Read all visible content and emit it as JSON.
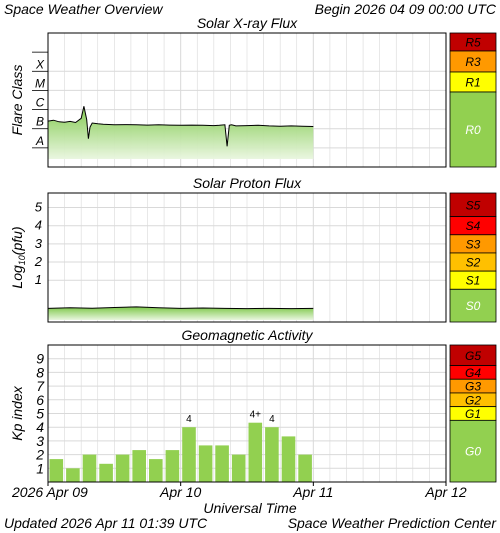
{
  "header": {
    "title": "Space Weather Overview",
    "begin": "Begin 2026 04 09 00:00 UTC"
  },
  "footer": {
    "updated": "Updated 2026 Apr 11 01:39 UTC",
    "center": "Space Weather Prediction Center"
  },
  "colors": {
    "grid": "#d9d9d9",
    "trace": "#000000",
    "fill_top": "#7ec84a",
    "fill_bottom": "#e9f6df",
    "bar": "#92d050",
    "scale": {
      "G5": "#c00000",
      "G4": "#ff0000",
      "G3": "#ff9900",
      "G2": "#ffc000",
      "G1": "#ffff00",
      "G0": "#92d050",
      "S5": "#c00000",
      "S4": "#ff0000",
      "S3": "#ff9900",
      "S2": "#ffc000",
      "S1": "#ffff00",
      "S0": "#92d050",
      "R5": "#c00000",
      "R3": "#ff9900",
      "R1": "#ffff00",
      "R0": "#92d050"
    }
  },
  "chart_data": [
    {
      "type": "line",
      "title": "Solar X-ray Flux",
      "ylabel": "Flare Class",
      "y_scale": "log",
      "ylim": [
        1e-09,
        0.01
      ],
      "y_ticks": [
        {
          "label": "A",
          "value": 1e-08
        },
        {
          "label": "B",
          "value": 1e-07
        },
        {
          "label": "C",
          "value": 1e-06
        },
        {
          "label": "M",
          "value": 1e-05
        },
        {
          "label": "X",
          "value": 0.0001
        }
      ],
      "x_range_hours": [
        0,
        72
      ],
      "series": [
        {
          "x_hours": [
            0,
            1,
            2,
            3,
            4,
            5,
            6,
            6.5,
            7,
            7.3,
            7.6,
            8,
            9,
            10,
            12,
            14,
            16,
            18,
            20,
            22,
            24,
            26,
            28,
            30,
            31,
            32,
            32.4,
            32.8,
            33.2,
            34,
            36,
            38,
            40,
            42,
            44,
            46,
            48
          ],
          "values": [
            2.5e-07,
            2.8e-07,
            2.3e-07,
            2.2e-07,
            2.4e-07,
            2.1e-07,
            3.5e-07,
            1.5e-06,
            3e-07,
            3e-08,
            1.2e-07,
            2e-07,
            1.8e-07,
            1.7e-07,
            1.6e-07,
            1.65e-07,
            1.6e-07,
            1.55e-07,
            1.6e-07,
            1.55e-07,
            1.5e-07,
            1.55e-07,
            1.5e-07,
            1.45e-07,
            1.5e-07,
            1.6e-07,
            1.2e-08,
            1.5e-07,
            1.6e-07,
            1.4e-07,
            1.45e-07,
            1.5e-07,
            1.4e-07,
            1.35e-07,
            1.4e-07,
            1.35e-07,
            1.3e-07
          ]
        }
      ],
      "scale_labels": [
        "R5",
        "R3",
        "R1",
        "R0"
      ]
    },
    {
      "type": "line",
      "title": "Solar Proton Flux",
      "ylabel": "Log10(pfu)",
      "ylim": [
        -1.3,
        5.8
      ],
      "y_ticks": [
        1,
        2,
        3,
        4,
        5
      ],
      "x_range_hours": [
        0,
        72
      ],
      "series": [
        {
          "x_hours": [
            0,
            4,
            8,
            12,
            16,
            20,
            24,
            28,
            32,
            36,
            40,
            44,
            48
          ],
          "values": [
            -0.55,
            -0.52,
            -0.54,
            -0.5,
            -0.47,
            -0.52,
            -0.55,
            -0.53,
            -0.55,
            -0.56,
            -0.55,
            -0.56,
            -0.55
          ]
        }
      ],
      "scale_labels": [
        "S5",
        "S4",
        "S3",
        "S2",
        "S1",
        "S0"
      ]
    },
    {
      "type": "bar",
      "title": "Geomagnetic Activity",
      "ylabel": "Kp index",
      "xlabel": "Universal Time",
      "ylim": [
        0,
        10
      ],
      "y_ticks": [
        1,
        2,
        3,
        4,
        5,
        6,
        7,
        8,
        9
      ],
      "x_range_hours": [
        0,
        72
      ],
      "bar_start_hours": [
        0,
        3,
        6,
        9,
        12,
        15,
        18,
        21,
        24,
        27,
        30,
        33,
        36,
        39,
        42,
        45
      ],
      "values": [
        1.67,
        1.0,
        2.0,
        1.33,
        2.0,
        2.33,
        1.67,
        2.33,
        4.0,
        2.67,
        2.67,
        2.0,
        4.33,
        4.0,
        3.33,
        2.0
      ],
      "annotations": [
        {
          "index": 8,
          "text": "4"
        },
        {
          "index": 12,
          "text": "4+"
        },
        {
          "index": 13,
          "text": "4"
        }
      ],
      "scale_labels": [
        "G5",
        "G4",
        "G3",
        "G2",
        "G1",
        "G0"
      ]
    }
  ],
  "x_axis": {
    "ticks": [
      {
        "label": "2026 Apr 09",
        "hour": 0
      },
      {
        "label": "Apr 10",
        "hour": 24
      },
      {
        "label": "Apr 11",
        "hour": 48
      },
      {
        "label": "Apr 12",
        "hour": 72
      }
    ]
  }
}
